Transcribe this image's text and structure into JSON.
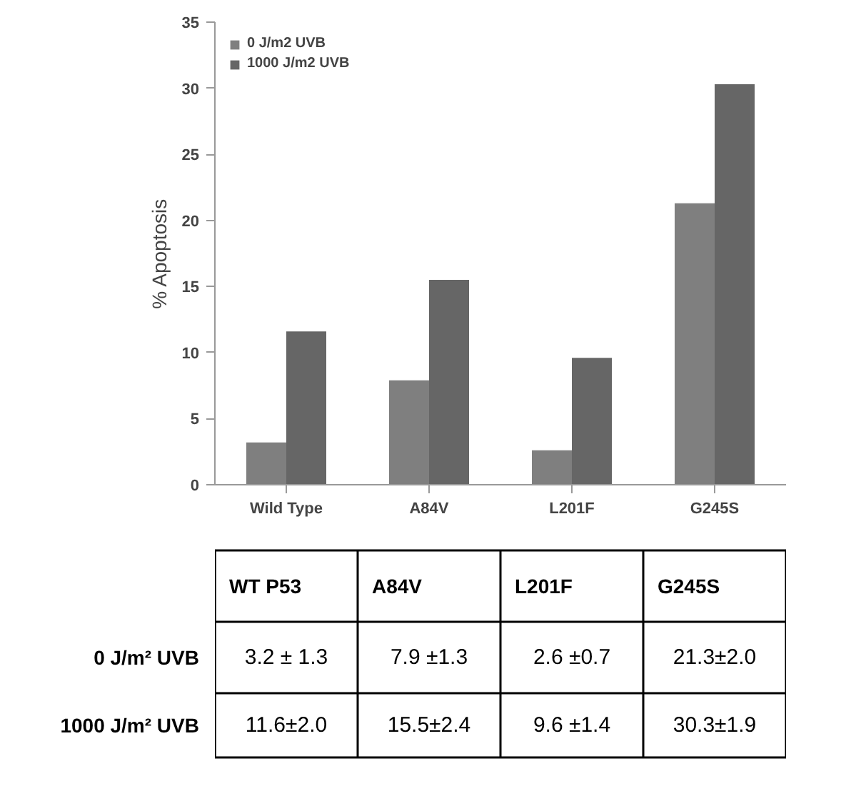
{
  "chart_data": {
    "type": "bar",
    "ylabel": "% Apoptosis",
    "categories": [
      "Wild Type",
      "A84V",
      "L201F",
      "G245S"
    ],
    "series": [
      {
        "name": "0 J/m2 UVB",
        "color": "#7f7f7f",
        "values": [
          3.2,
          7.9,
          2.6,
          21.3
        ],
        "value_labels": [
          "3.2 ± 1.3",
          "7.9 ±1.3",
          "2.6 ±0.7",
          "21.3±2.0"
        ]
      },
      {
        "name": "1000 J/m2 UVB",
        "color": "#666666",
        "values": [
          11.6,
          15.5,
          9.6,
          30.3
        ],
        "value_labels": [
          "11.6±2.0",
          "15.5±2.4",
          "9.6 ±1.4",
          "30.3±1.9"
        ]
      }
    ],
    "ylim": [
      0,
      35
    ],
    "yticks": [
      0,
      5,
      10,
      15,
      20,
      25,
      30,
      35
    ],
    "grid": false,
    "legend": "top left",
    "annotations": [
      "WT P53",
      "A84V",
      "L201F",
      "G245S",
      "0 J/m² UVB",
      "1000 J/m² UVB"
    ]
  }
}
